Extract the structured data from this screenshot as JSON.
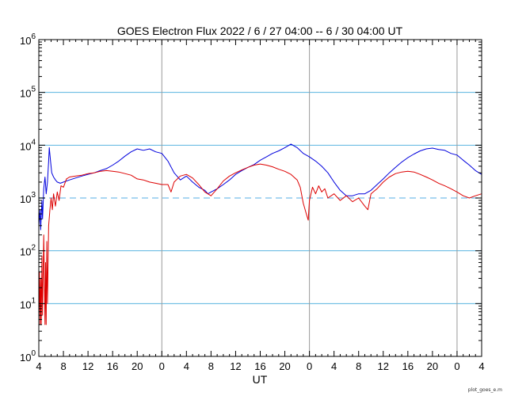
{
  "chart_data": {
    "type": "line",
    "title": "GOES Electron Flux   2022 /  6 / 27   04:00 --  6 / 30   04:00   UT",
    "xlabel": "UT",
    "ylabel": "",
    "yscale": "log",
    "ylim": [
      1,
      1000000
    ],
    "y_ticks": [
      {
        "base": "10",
        "exp": "0",
        "value": 1
      },
      {
        "base": "10",
        "exp": "1",
        "value": 10
      },
      {
        "base": "10",
        "exp": "2",
        "value": 100
      },
      {
        "base": "10",
        "exp": "3",
        "value": 1000
      },
      {
        "base": "10",
        "exp": "4",
        "value": 10000
      },
      {
        "base": "10",
        "exp": "5",
        "value": 100000
      },
      {
        "base": "10",
        "exp": "6",
        "value": 1000000
      }
    ],
    "xlim": [
      0,
      72
    ],
    "x_ticks": [
      {
        "t": 0,
        "label": "4"
      },
      {
        "t": 4,
        "label": "8"
      },
      {
        "t": 8,
        "label": "12"
      },
      {
        "t": 12,
        "label": "16"
      },
      {
        "t": 16,
        "label": "20"
      },
      {
        "t": 20,
        "label": "0"
      },
      {
        "t": 24,
        "label": "4"
      },
      {
        "t": 28,
        "label": "8"
      },
      {
        "t": 32,
        "label": "12"
      },
      {
        "t": 36,
        "label": "16"
      },
      {
        "t": 40,
        "label": "20"
      },
      {
        "t": 44,
        "label": "0"
      },
      {
        "t": 48,
        "label": "4"
      },
      {
        "t": 52,
        "label": "8"
      },
      {
        "t": 56,
        "label": "12"
      },
      {
        "t": 60,
        "label": "16"
      },
      {
        "t": 64,
        "label": "20"
      },
      {
        "t": 68,
        "label": "0"
      },
      {
        "t": 72,
        "label": "4"
      }
    ],
    "day_boundaries_hours": [
      20,
      44,
      68
    ],
    "gridlines_y": [
      10,
      100,
      10000,
      100000
    ],
    "threshold": 1000,
    "colors": {
      "series_a": "#0000dd",
      "series_b": "#dd0000",
      "grid_y": "#5ab4e0",
      "day_lines": "#999999",
      "threshold": "#8ec8ee"
    },
    "series": [
      {
        "color_key": "series_a",
        "points": [
          [
            0.0,
            300
          ],
          [
            0.2,
            600
          ],
          [
            0.3,
            250
          ],
          [
            0.5,
            900
          ],
          [
            0.6,
            400
          ],
          [
            0.8,
            1500
          ],
          [
            1.0,
            2500
          ],
          [
            1.2,
            1200
          ],
          [
            1.4,
            2000
          ],
          [
            1.6,
            5000
          ],
          [
            1.7,
            9000
          ],
          [
            1.9,
            5000
          ],
          [
            2.1,
            3000
          ],
          [
            2.4,
            2500
          ],
          [
            2.7,
            2200
          ],
          [
            3.0,
            2000
          ],
          [
            3.5,
            1900
          ],
          [
            4.0,
            2000
          ],
          [
            5.0,
            2200
          ],
          [
            6.0,
            2400
          ],
          [
            7.0,
            2600
          ],
          [
            8.0,
            2800
          ],
          [
            9.0,
            3000
          ],
          [
            10.0,
            3300
          ],
          [
            11.0,
            3600
          ],
          [
            12.0,
            4200
          ],
          [
            13.0,
            5000
          ],
          [
            14.0,
            6200
          ],
          [
            15.0,
            7500
          ],
          [
            16.0,
            8500
          ],
          [
            17.0,
            8000
          ],
          [
            18.0,
            8500
          ],
          [
            19.0,
            7500
          ],
          [
            20.0,
            7000
          ],
          [
            21.0,
            5000
          ],
          [
            22.0,
            3000
          ],
          [
            23.0,
            2200
          ],
          [
            24.0,
            2600
          ],
          [
            25.0,
            2000
          ],
          [
            26.0,
            1600
          ],
          [
            27.0,
            1400
          ],
          [
            27.5,
            1200
          ],
          [
            28.0,
            1300
          ],
          [
            29.0,
            1500
          ],
          [
            30.0,
            1800
          ],
          [
            31.0,
            2200
          ],
          [
            32.0,
            2800
          ],
          [
            33.0,
            3300
          ],
          [
            34.0,
            3800
          ],
          [
            35.0,
            4300
          ],
          [
            36.0,
            5200
          ],
          [
            37.0,
            6000
          ],
          [
            38.0,
            7000
          ],
          [
            39.0,
            7800
          ],
          [
            40.0,
            9000
          ],
          [
            41.0,
            10500
          ],
          [
            42.0,
            9000
          ],
          [
            43.0,
            7000
          ],
          [
            44.0,
            6000
          ],
          [
            45.0,
            5000
          ],
          [
            46.0,
            4000
          ],
          [
            47.0,
            3000
          ],
          [
            48.0,
            2000
          ],
          [
            49.0,
            1400
          ],
          [
            50.0,
            1100
          ],
          [
            51.0,
            1100
          ],
          [
            52.0,
            1200
          ],
          [
            53.0,
            1200
          ],
          [
            54.0,
            1400
          ],
          [
            55.0,
            1800
          ],
          [
            56.0,
            2300
          ],
          [
            57.0,
            3000
          ],
          [
            58.0,
            3800
          ],
          [
            59.0,
            4800
          ],
          [
            60.0,
            5800
          ],
          [
            61.0,
            6800
          ],
          [
            62.0,
            7800
          ],
          [
            63.0,
            8500
          ],
          [
            64.0,
            8800
          ],
          [
            65.0,
            8300
          ],
          [
            66.0,
            8000
          ],
          [
            67.0,
            7000
          ],
          [
            68.0,
            6500
          ],
          [
            69.0,
            5200
          ],
          [
            70.0,
            4200
          ],
          [
            71.0,
            3300
          ],
          [
            72.0,
            2800
          ]
        ]
      },
      {
        "color_key": "series_b",
        "points": [
          [
            0.0,
            5
          ],
          [
            0.1,
            40
          ],
          [
            0.2,
            4
          ],
          [
            0.3,
            30
          ],
          [
            0.4,
            4
          ],
          [
            0.5,
            80
          ],
          [
            0.6,
            6
          ],
          [
            0.8,
            200
          ],
          [
            1.0,
            4
          ],
          [
            1.1,
            60
          ],
          [
            1.2,
            4
          ],
          [
            1.3,
            150
          ],
          [
            1.4,
            10
          ],
          [
            1.6,
            300
          ],
          [
            1.8,
            600
          ],
          [
            2.0,
            1000
          ],
          [
            2.2,
            600
          ],
          [
            2.4,
            1200
          ],
          [
            2.7,
            700
          ],
          [
            3.0,
            1300
          ],
          [
            3.3,
            900
          ],
          [
            3.6,
            1700
          ],
          [
            4.0,
            1600
          ],
          [
            4.5,
            2300
          ],
          [
            5.0,
            2500
          ],
          [
            6.0,
            2600
          ],
          [
            7.0,
            2700
          ],
          [
            8.0,
            2900
          ],
          [
            9.0,
            3000
          ],
          [
            10.0,
            3200
          ],
          [
            11.0,
            3300
          ],
          [
            12.0,
            3200
          ],
          [
            13.0,
            3100
          ],
          [
            14.0,
            2900
          ],
          [
            15.0,
            2700
          ],
          [
            16.0,
            2300
          ],
          [
            17.0,
            2200
          ],
          [
            18.0,
            2000
          ],
          [
            19.0,
            1900
          ],
          [
            20.0,
            1800
          ],
          [
            21.0,
            1800
          ],
          [
            21.5,
            1300
          ],
          [
            22.0,
            2000
          ],
          [
            23.0,
            2600
          ],
          [
            24.0,
            2800
          ],
          [
            25.0,
            2400
          ],
          [
            26.0,
            1800
          ],
          [
            27.0,
            1300
          ],
          [
            28.0,
            1100
          ],
          [
            29.0,
            1500
          ],
          [
            30.0,
            2100
          ],
          [
            31.0,
            2600
          ],
          [
            32.0,
            3000
          ],
          [
            33.0,
            3400
          ],
          [
            34.0,
            3800
          ],
          [
            35.0,
            4200
          ],
          [
            36.0,
            4400
          ],
          [
            37.0,
            4200
          ],
          [
            38.0,
            3900
          ],
          [
            39.0,
            3500
          ],
          [
            40.0,
            3200
          ],
          [
            41.0,
            2800
          ],
          [
            42.0,
            2200
          ],
          [
            42.5,
            1600
          ],
          [
            43.0,
            800
          ],
          [
            43.5,
            500
          ],
          [
            43.8,
            380
          ],
          [
            44.0,
            900
          ],
          [
            44.5,
            1600
          ],
          [
            45.0,
            1200
          ],
          [
            45.5,
            1700
          ],
          [
            46.0,
            1300
          ],
          [
            46.5,
            1500
          ],
          [
            47.0,
            1000
          ],
          [
            48.0,
            1200
          ],
          [
            49.0,
            900
          ],
          [
            50.0,
            1100
          ],
          [
            51.0,
            850
          ],
          [
            52.0,
            1000
          ],
          [
            53.0,
            700
          ],
          [
            53.5,
            600
          ],
          [
            54.0,
            1200
          ],
          [
            55.0,
            1500
          ],
          [
            56.0,
            2000
          ],
          [
            57.0,
            2500
          ],
          [
            58.0,
            2900
          ],
          [
            59.0,
            3100
          ],
          [
            60.0,
            3200
          ],
          [
            61.0,
            3100
          ],
          [
            62.0,
            2800
          ],
          [
            63.0,
            2500
          ],
          [
            64.0,
            2200
          ],
          [
            65.0,
            1900
          ],
          [
            66.0,
            1700
          ],
          [
            67.0,
            1500
          ],
          [
            68.0,
            1300
          ],
          [
            69.0,
            1100
          ],
          [
            70.0,
            1000
          ],
          [
            71.0,
            1100
          ],
          [
            72.0,
            1200
          ]
        ]
      }
    ]
  },
  "footer": {
    "filename": "plot_goes_e.m"
  }
}
